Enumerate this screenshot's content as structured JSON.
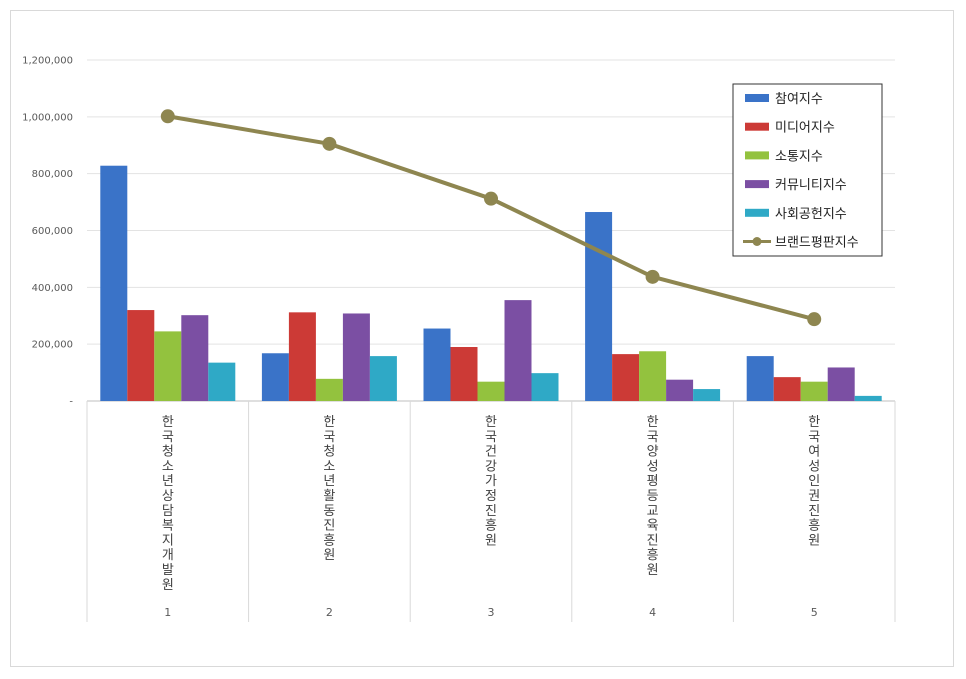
{
  "chart_data": {
    "type": "bar",
    "categories": [
      "한국청소년상담복지개발원",
      "한국청소년활동진흥원",
      "한국건강가정진흥원",
      "한국양성평등교육진흥원",
      "한국여성인권진흥원"
    ],
    "category_index": [
      "1",
      "2",
      "3",
      "4",
      "5"
    ],
    "ylim": [
      0,
      1200000
    ],
    "yticks": [
      0,
      200000,
      400000,
      600000,
      800000,
      1000000,
      1200000
    ],
    "ytick_labels": [
      "-",
      "200,000",
      "400,000",
      "600,000",
      "800,000",
      "1,000,000",
      "1,200,000"
    ],
    "grid": true,
    "legend_position": "top-right",
    "series": [
      {
        "name": "참여지수",
        "type": "bar",
        "color": "#3a73c8",
        "values": [
          828000,
          168000,
          255000,
          665000,
          158000
        ]
      },
      {
        "name": "미디어지수",
        "type": "bar",
        "color": "#cc3a36",
        "values": [
          320000,
          312000,
          190000,
          165000,
          84000
        ]
      },
      {
        "name": "소통지수",
        "type": "bar",
        "color": "#93c23e",
        "values": [
          245000,
          78000,
          68000,
          175000,
          68000
        ]
      },
      {
        "name": "커뮤니티지수",
        "type": "bar",
        "color": "#7b4fa3",
        "values": [
          302000,
          308000,
          355000,
          75000,
          118000
        ]
      },
      {
        "name": "사회공헌지수",
        "type": "bar",
        "color": "#2fa9c6",
        "values": [
          135000,
          158000,
          98000,
          42000,
          18000
        ]
      },
      {
        "name": "브랜드평판지수",
        "type": "line",
        "color": "#8e8650",
        "values": [
          1002000,
          905000,
          712000,
          437000,
          288000
        ]
      }
    ]
  }
}
